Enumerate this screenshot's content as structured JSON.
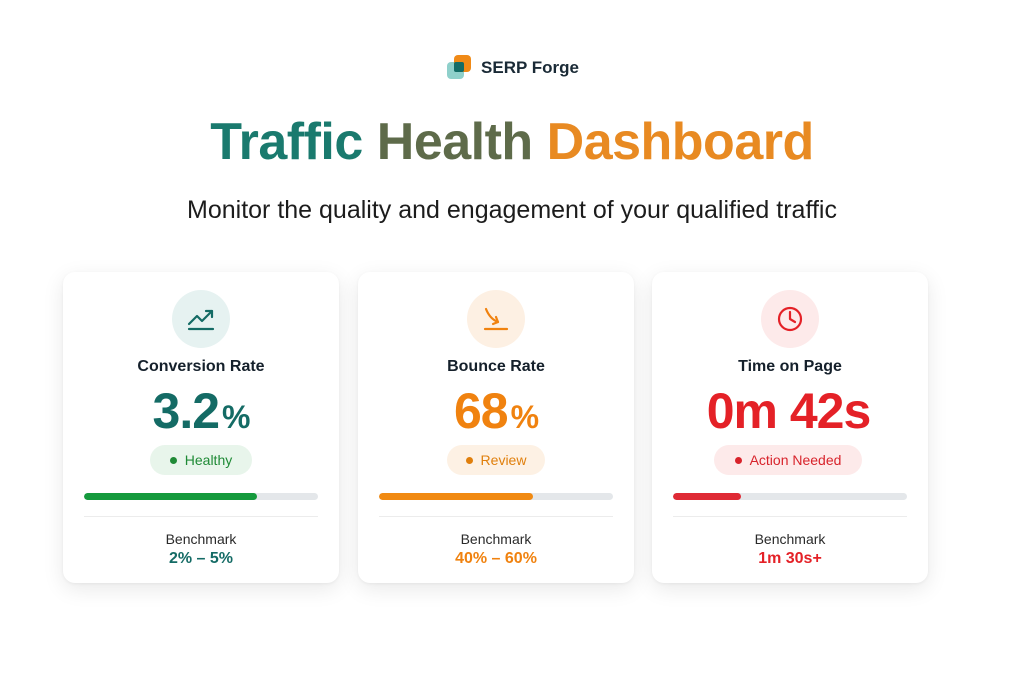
{
  "brand": {
    "name": "SERP Forge"
  },
  "header": {
    "title_parts": [
      "Traffic",
      "Health",
      "Dashboard"
    ],
    "title_colors": [
      "#1a7a6e",
      "#5e6b4a",
      "#e88a22"
    ],
    "subtitle": "Monitor the quality and engagement of your qualified traffic"
  },
  "cards": [
    {
      "label": "Conversion Rate",
      "value": "3.2",
      "unit": "%",
      "icon": "trending-up-icon",
      "status": "Healthy",
      "progress": 0.74,
      "benchmark_label": "Benchmark",
      "benchmark_value": "2% – 5%",
      "colors": {
        "accent": "#146b65",
        "bar": "#159a3d",
        "badge_bg": "#e8f5eb",
        "badge_text": "#1f8a36",
        "icon_bg": "#e6f2f1"
      }
    },
    {
      "label": "Bounce Rate",
      "value": "68",
      "unit": "%",
      "icon": "arrow-down-right-icon",
      "status": "Review",
      "progress": 0.66,
      "benchmark_label": "Benchmark",
      "benchmark_value": "40% – 60%",
      "colors": {
        "accent": "#f0820f",
        "bar": "#f18a12",
        "badge_bg": "#fdf1e4",
        "badge_text": "#e07f0c",
        "icon_bg": "#fdf0e3"
      }
    },
    {
      "label": "Time on Page",
      "value": "0m 42s",
      "unit": "",
      "icon": "clock-icon",
      "status": "Action Needed",
      "progress": 0.29,
      "benchmark_label": "Benchmark",
      "benchmark_value": "1m 30s+",
      "colors": {
        "accent": "#e42127",
        "bar": "#df2a35",
        "badge_bg": "#fdeaea",
        "badge_text": "#d8232b",
        "icon_bg": "#fdeaea"
      }
    }
  ]
}
